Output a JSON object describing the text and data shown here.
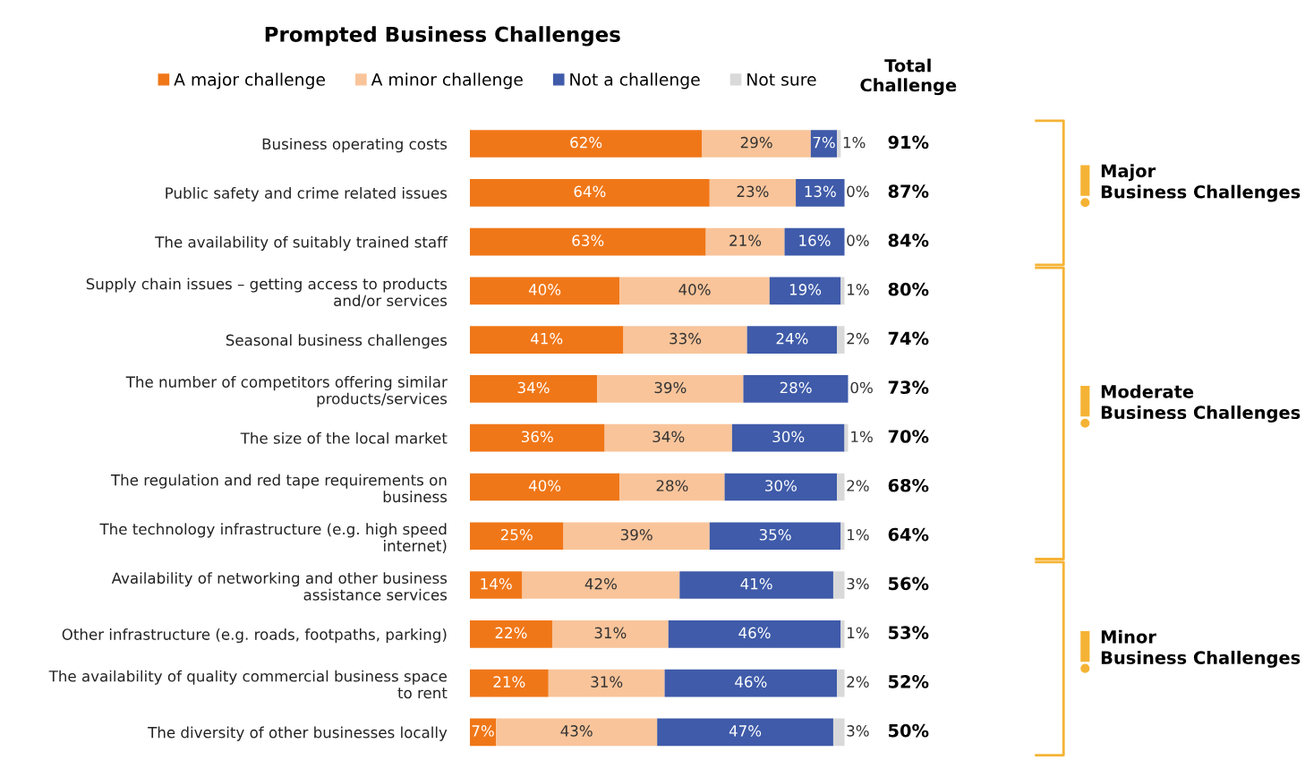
{
  "chart_data": {
    "type": "bar",
    "orientation": "horizontal",
    "stacked": true,
    "title": "Prompted Business Challenges",
    "categories": [
      "Business operating costs",
      "Public safety and crime related issues",
      "The availability of suitably trained staff",
      "Supply chain issues – getting access to products\nand/or services",
      "Seasonal business challenges",
      "The number of competitors offering similar\nproducts/services",
      "The size of the local market",
      "The regulation and red tape requirements on\nbusiness",
      "The technology infrastructure (e.g. high speed\ninternet)",
      "Availability of networking and other business\nassistance services",
      "Other infrastructure (e.g. roads, footpaths, parking)",
      "The availability of quality commercial business space\nto rent",
      "The diversity of other businesses locally"
    ],
    "series": [
      {
        "name": "A major challenge",
        "color": "#f07718",
        "values": [
          62,
          64,
          63,
          40,
          41,
          34,
          36,
          40,
          25,
          14,
          22,
          21,
          7
        ],
        "value_labels": [
          "62%",
          "64%",
          "63%",
          "40%",
          "41%",
          "34%",
          "36%",
          "40%",
          "25%",
          "14%",
          "22%",
          "21%",
          "7%"
        ]
      },
      {
        "name": "A minor challenge",
        "color": "#f9c49a",
        "values": [
          29,
          23,
          21,
          40,
          33,
          39,
          34,
          28,
          39,
          42,
          31,
          31,
          43
        ],
        "value_labels": [
          "29%",
          "23%",
          "21%",
          "40%",
          "33%",
          "39%",
          "34%",
          "28%",
          "39%",
          "42%",
          "31%",
          "31%",
          "43%"
        ]
      },
      {
        "name": "Not a challenge",
        "color": "#3f5ba9",
        "values": [
          7,
          13,
          16,
          19,
          24,
          28,
          30,
          30,
          35,
          41,
          46,
          46,
          47
        ],
        "value_labels": [
          "7%",
          "13%",
          "16%",
          "19%",
          "24%",
          "28%",
          "30%",
          "30%",
          "35%",
          "41%",
          "46%",
          "46%",
          "47%"
        ]
      },
      {
        "name": "Not sure",
        "color": "#d9d9d9",
        "values": [
          1,
          0,
          0,
          1,
          2,
          0,
          1,
          2,
          1,
          3,
          1,
          2,
          3
        ],
        "value_labels": [
          "1%",
          "0%",
          "0%",
          "1%",
          "2%",
          "0%",
          "1%",
          "2%",
          "1%",
          "3%",
          "1%",
          "2%",
          "3%"
        ]
      }
    ],
    "legend": "top",
    "annotations": [
      "Total\nChallenge",
      "91%",
      "87%",
      "84%",
      "80%",
      "74%",
      "73%",
      "70%",
      "68%",
      "64%",
      "56%",
      "53%",
      "52%",
      "50%",
      "Major\nBusiness Challenges",
      "Moderate\nBusiness Challenges",
      "Minor\nBusiness Challenges"
    ]
  }
}
